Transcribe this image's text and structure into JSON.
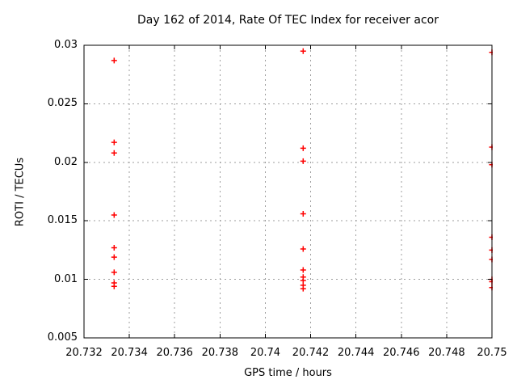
{
  "chart_data": {
    "type": "scatter",
    "title": "Day 162 of 2014, Rate Of TEC Index for receiver acor",
    "xlabel": "GPS time / hours",
    "ylabel": "ROTI / TECUs",
    "xlim": [
      20.732,
      20.75
    ],
    "ylim": [
      0.005,
      0.03
    ],
    "x_ticks": [
      20.732,
      20.734,
      20.736,
      20.738,
      20.74,
      20.742,
      20.744,
      20.746,
      20.748,
      20.75
    ],
    "x_tick_labels": [
      "20.732",
      "20.734",
      "20.736",
      "20.738",
      "20.74",
      "20.742",
      "20.744",
      "20.746",
      "20.748",
      "20.75"
    ],
    "y_ticks": [
      0.005,
      0.01,
      0.015,
      0.02,
      0.025,
      0.03
    ],
    "y_tick_labels": [
      "0.005",
      "0.01",
      "0.015",
      "0.02",
      "0.025",
      "0.03"
    ],
    "grid": true,
    "legend": "none",
    "marker": "plus",
    "marker_color": "#ff0000",
    "grid_color": "#9e9e9e",
    "axis_color": "#000000",
    "background_color": "#ffffff",
    "series": [
      {
        "name": "ROTI",
        "color": "#ff0000",
        "points": [
          [
            20.73333,
            0.0287
          ],
          [
            20.73333,
            0.0217
          ],
          [
            20.73333,
            0.0208
          ],
          [
            20.73333,
            0.0155
          ],
          [
            20.73333,
            0.0127
          ],
          [
            20.73333,
            0.0119
          ],
          [
            20.73333,
            0.0106
          ],
          [
            20.73333,
            0.0097
          ],
          [
            20.73333,
            0.0094
          ],
          [
            20.74167,
            0.0295
          ],
          [
            20.74167,
            0.0212
          ],
          [
            20.74167,
            0.0201
          ],
          [
            20.74167,
            0.0156
          ],
          [
            20.74167,
            0.0126
          ],
          [
            20.74167,
            0.0108
          ],
          [
            20.74167,
            0.0102
          ],
          [
            20.74167,
            0.0099
          ],
          [
            20.74167,
            0.0095
          ],
          [
            20.74167,
            0.0092
          ],
          [
            20.75,
            0.0294
          ],
          [
            20.75,
            0.0213
          ],
          [
            20.75,
            0.0198
          ],
          [
            20.75,
            0.0136
          ],
          [
            20.75,
            0.0125
          ],
          [
            20.75,
            0.0117
          ],
          [
            20.75,
            0.01
          ],
          [
            20.75,
            0.0098
          ],
          [
            20.75,
            0.0093
          ]
        ]
      }
    ]
  }
}
